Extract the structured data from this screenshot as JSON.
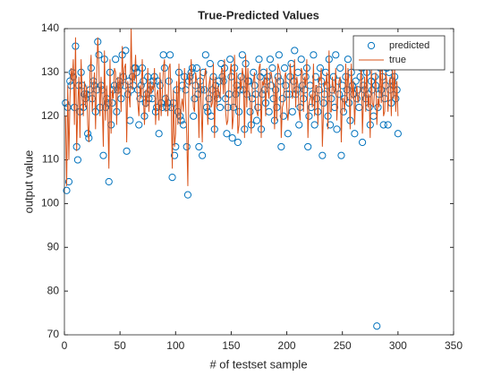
{
  "chart_data": {
    "type": "line",
    "title": "True-Predicted Values",
    "x_label": "# of testset sample",
    "y_label": "output value",
    "xlim": [
      0,
      350
    ],
    "xticks": [
      0,
      50,
      100,
      150,
      200,
      250,
      300,
      350
    ],
    "ylim": [
      70,
      140
    ],
    "yticks": [
      70,
      80,
      90,
      100,
      110,
      120,
      130,
      140
    ],
    "legend": "northeast",
    "x": [
      1,
      2,
      3,
      4,
      5,
      6,
      7,
      8,
      9,
      10,
      11,
      12,
      13,
      14,
      15,
      16,
      17,
      18,
      19,
      20,
      21,
      22,
      23,
      24,
      25,
      26,
      27,
      28,
      29,
      30,
      31,
      32,
      33,
      34,
      35,
      36,
      37,
      38,
      39,
      40,
      41,
      42,
      43,
      44,
      45,
      46,
      47,
      48,
      49,
      50,
      51,
      52,
      53,
      54,
      55,
      56,
      57,
      58,
      59,
      60,
      61,
      62,
      63,
      64,
      65,
      66,
      67,
      68,
      69,
      70,
      71,
      72,
      73,
      74,
      75,
      76,
      77,
      78,
      79,
      80,
      81,
      82,
      83,
      84,
      85,
      86,
      87,
      88,
      89,
      90,
      91,
      92,
      93,
      94,
      95,
      96,
      97,
      98,
      99,
      100,
      101,
      102,
      103,
      104,
      105,
      106,
      107,
      108,
      109,
      110,
      111,
      112,
      113,
      114,
      115,
      116,
      117,
      118,
      119,
      120,
      121,
      122,
      123,
      124,
      125,
      126,
      127,
      128,
      129,
      130,
      131,
      132,
      133,
      134,
      135,
      136,
      137,
      138,
      139,
      140,
      141,
      142,
      143,
      144,
      145,
      146,
      147,
      148,
      149,
      150,
      151,
      152,
      153,
      154,
      155,
      156,
      157,
      158,
      159,
      160,
      161,
      162,
      163,
      164,
      165,
      166,
      167,
      168,
      169,
      170,
      171,
      172,
      173,
      174,
      175,
      176,
      177,
      178,
      179,
      180,
      181,
      182,
      183,
      184,
      185,
      186,
      187,
      188,
      189,
      190,
      191,
      192,
      193,
      194,
      195,
      196,
      197,
      198,
      199,
      200,
      201,
      202,
      203,
      204,
      205,
      206,
      207,
      208,
      209,
      210,
      211,
      212,
      213,
      214,
      215,
      216,
      217,
      218,
      219,
      220,
      221,
      222,
      223,
      224,
      225,
      226,
      227,
      228,
      229,
      230,
      231,
      232,
      233,
      234,
      235,
      236,
      237,
      238,
      239,
      240,
      241,
      242,
      243,
      244,
      245,
      246,
      247,
      248,
      249,
      250,
      251,
      252,
      253,
      254,
      255,
      256,
      257,
      258,
      259,
      260,
      261,
      262,
      263,
      264,
      265,
      266,
      267,
      268,
      269,
      270,
      271,
      272,
      273,
      274,
      275,
      276,
      277,
      278,
      279,
      280,
      281,
      282,
      283,
      284,
      285,
      286,
      287,
      288,
      289,
      290,
      291,
      292,
      293,
      294,
      295,
      296,
      297,
      298,
      299,
      300
    ],
    "series": [
      {
        "name": "predicted",
        "color": "#0072bd",
        "mode": "markers",
        "values": [
          123,
          103,
          122,
          105,
          128,
          127,
          130,
          129,
          122,
          136,
          113,
          110,
          127,
          121,
          130,
          127,
          122,
          125,
          124,
          125,
          116,
          115,
          126,
          131,
          124,
          128,
          127,
          121,
          126,
          137,
          134,
          122,
          127,
          126,
          111,
          133,
          122,
          124,
          123,
          105,
          130,
          118,
          123,
          126,
          127,
          133,
          121,
          126,
          128,
          127,
          124,
          134,
          129,
          127,
          135,
          112,
          125,
          128,
          119,
          126,
          129,
          127,
          131,
          131,
          130,
          126,
          118,
          124,
          127,
          131,
          128,
          120,
          123,
          125,
          129,
          124,
          126,
          127,
          124,
          128,
          129,
          121,
          122,
          128,
          116,
          127,
          123,
          122,
          134,
          131,
          124,
          122,
          123,
          128,
          134,
          122,
          106,
          123,
          111,
          113,
          126,
          121,
          130,
          120,
          119,
          127,
          118,
          129,
          126,
          113,
          102,
          128,
          129,
          130,
          131,
          120,
          124,
          127,
          131,
          125,
          113,
          128,
          126,
          111,
          130,
          126,
          134,
          122,
          121,
          124,
          132,
          120,
          126,
          129,
          117,
          127,
          125,
          124,
          128,
          122,
          132,
          129,
          128,
          131,
          124,
          116,
          122,
          125,
          133,
          129,
          115,
          122,
          131,
          125,
          127,
          114,
          121,
          126,
          129,
          134,
          126,
          117,
          132,
          125,
          128,
          128,
          121,
          118,
          124,
          130,
          127,
          125,
          119,
          122,
          133,
          129,
          117,
          125,
          130,
          126,
          123,
          128,
          129,
          121,
          133,
          127,
          131,
          124,
          119,
          126,
          122,
          129,
          134,
          128,
          113,
          124,
          120,
          131,
          127,
          125,
          116,
          125,
          129,
          132,
          121,
          128,
          135,
          125,
          126,
          130,
          118,
          122,
          133,
          127,
          124,
          126,
          129,
          131,
          113,
          120,
          127,
          122,
          125,
          134,
          118,
          129,
          124,
          121,
          126,
          131,
          128,
          111,
          123,
          125,
          130,
          127,
          120,
          133,
          118,
          124,
          126,
          129,
          122,
          134,
          117,
          128,
          125,
          131,
          111,
          127,
          121,
          124,
          129,
          126,
          133,
          123,
          119,
          130,
          127,
          125,
          116,
          128,
          124,
          126,
          122,
          129,
          131,
          114,
          127,
          126,
          124,
          130,
          125,
          122,
          118,
          128,
          126,
          120,
          129,
          127,
          72,
          122,
          125,
          131,
          126,
          129,
          118,
          124,
          127,
          131,
          118,
          130,
          126,
          123,
          128,
          127,
          129,
          124,
          126,
          116
        ]
      },
      {
        "name": "true",
        "color": "#d95319",
        "mode": "line",
        "values": [
          120,
          104,
          127,
          110,
          124,
          131,
          128,
          133,
          118,
          138,
          112,
          122,
          129,
          115,
          133,
          125,
          120,
          128,
          122,
          127,
          118,
          114,
          130,
          134,
          121,
          126,
          130,
          117,
          129,
          138,
          131,
          120,
          129,
          123,
          113,
          135,
          119,
          127,
          121,
          108,
          133,
          116,
          126,
          124,
          131,
          130,
          118,
          129,
          125,
          130,
          121,
          136,
          127,
          131,
          132,
          114,
          128,
          125,
          122,
          140,
          126,
          130,
          128,
          134,
          127,
          123,
          120,
          127,
          124,
          133,
          125,
          118,
          126,
          122,
          131,
          121,
          128,
          125,
          127,
          126,
          131,
          118,
          125,
          126,
          119,
          130,
          120,
          125,
          131,
          133,
          121,
          125,
          120,
          131,
          132,
          124,
          108,
          126,
          113,
          116,
          128,
          118,
          132,
          118,
          122,
          124,
          121,
          131,
          123,
          116,
          104,
          130,
          127,
          133,
          128,
          122,
          121,
          130,
          128,
          127,
          115,
          131,
          123,
          114,
          128,
          129,
          131,
          124,
          118,
          127,
          129,
          122,
          123,
          132,
          115,
          129,
          122,
          127,
          125,
          124,
          130,
          131,
          125,
          133,
          121,
          118,
          119,
          128,
          130,
          132,
          117,
          120,
          134,
          122,
          130,
          116,
          118,
          129,
          126,
          131,
          129,
          115,
          134,
          122,
          131,
          125,
          124,
          116,
          127,
          128,
          130,
          122,
          121,
          120,
          131,
          132,
          115,
          128,
          127,
          129,
          120,
          131,
          126,
          124,
          130,
          130,
          128,
          127,
          117,
          129,
          119,
          132,
          131,
          130,
          115,
          122,
          123,
          129,
          130,
          122,
          119,
          122,
          132,
          129,
          124,
          126,
          133,
          122,
          129,
          127,
          121,
          119,
          131,
          130,
          121,
          129,
          127,
          133,
          115,
          123,
          124,
          125,
          122,
          132,
          120,
          127,
          127,
          118,
          129,
          128,
          131,
          113,
          121,
          128,
          127,
          130,
          117,
          135,
          121,
          121,
          129,
          126,
          125,
          131,
          119,
          125,
          128,
          129,
          114,
          124,
          124,
          121,
          132,
          123,
          131,
          126,
          117,
          132,
          124,
          128,
          118,
          125,
          127,
          123,
          125,
          126,
          133,
          116,
          124,
          129,
          121,
          133,
          122,
          125,
          115,
          131,
          123,
          122,
          126,
          130,
          118,
          124,
          122,
          133,
          123,
          131,
          120,
          121,
          130,
          128,
          121,
          127,
          129,
          120,
          131,
          124,
          131,
          121,
          128,
          120
        ]
      }
    ]
  }
}
